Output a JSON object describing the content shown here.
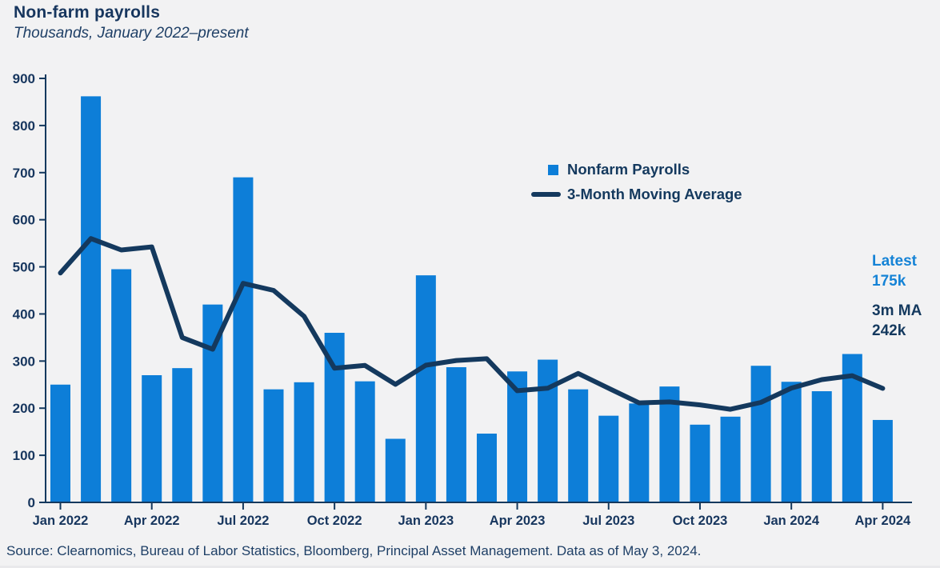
{
  "title": "Non-farm payrolls",
  "subtitle": "Thousands, January 2022–present",
  "legend": {
    "bars_label": "Nonfarm Payrolls",
    "line_label": "3-Month Moving Average"
  },
  "annotations": {
    "latest_label": "Latest",
    "latest_value": "175k",
    "ma_label": "3m MA",
    "ma_value": "242k"
  },
  "source": "Source: Clearnomics, Bureau of Labor Statistics, Bloomberg, Principal Asset Management. Data as of May 3, 2024.",
  "colors": {
    "bar": "#0d7ed8",
    "line": "#14395e",
    "accent_blue": "#1583d6",
    "navy_text": "#14395e",
    "background": "#f2f2f3"
  },
  "chart_data": {
    "type": "bar",
    "title": "Non-farm payrolls",
    "subtitle": "Thousands, January 2022–present",
    "xlabel": "",
    "ylabel": "",
    "ylim": [
      0,
      900
    ],
    "y_ticks": [
      0,
      100,
      200,
      300,
      400,
      500,
      600,
      700,
      800,
      900
    ],
    "grid": false,
    "legend_position": "upper-center",
    "x_tick_every": 3,
    "categories": [
      "Jan 2022",
      "Feb 2022",
      "Mar 2022",
      "Apr 2022",
      "May 2022",
      "Jun 2022",
      "Jul 2022",
      "Aug 2022",
      "Sep 2022",
      "Oct 2022",
      "Nov 2022",
      "Dec 2022",
      "Jan 2023",
      "Feb 2023",
      "Mar 2023",
      "Apr 2023",
      "May 2023",
      "Jun 2023",
      "Jul 2023",
      "Aug 2023",
      "Sep 2023",
      "Oct 2023",
      "Nov 2023",
      "Dec 2023",
      "Jan 2024",
      "Feb 2024",
      "Mar 2024",
      "Apr 2024"
    ],
    "series": [
      {
        "name": "Nonfarm Payrolls",
        "type": "bar",
        "values": [
          250,
          862,
          495,
          270,
          285,
          420,
          690,
          240,
          255,
          360,
          257,
          135,
          482,
          287,
          146,
          278,
          303,
          240,
          184,
          210,
          246,
          165,
          182,
          290,
          256,
          236,
          315,
          175
        ]
      },
      {
        "name": "3-Month Moving Average",
        "type": "line",
        "values": [
          487,
          560,
          535.7,
          542.3,
          350,
          325,
          465,
          450,
          395,
          285,
          290.7,
          250.7,
          291.3,
          301.3,
          305,
          237,
          242.3,
          273.7,
          242.3,
          211.3,
          213.3,
          207,
          197.7,
          212.3,
          242.7,
          260.7,
          269,
          242
        ]
      }
    ]
  }
}
